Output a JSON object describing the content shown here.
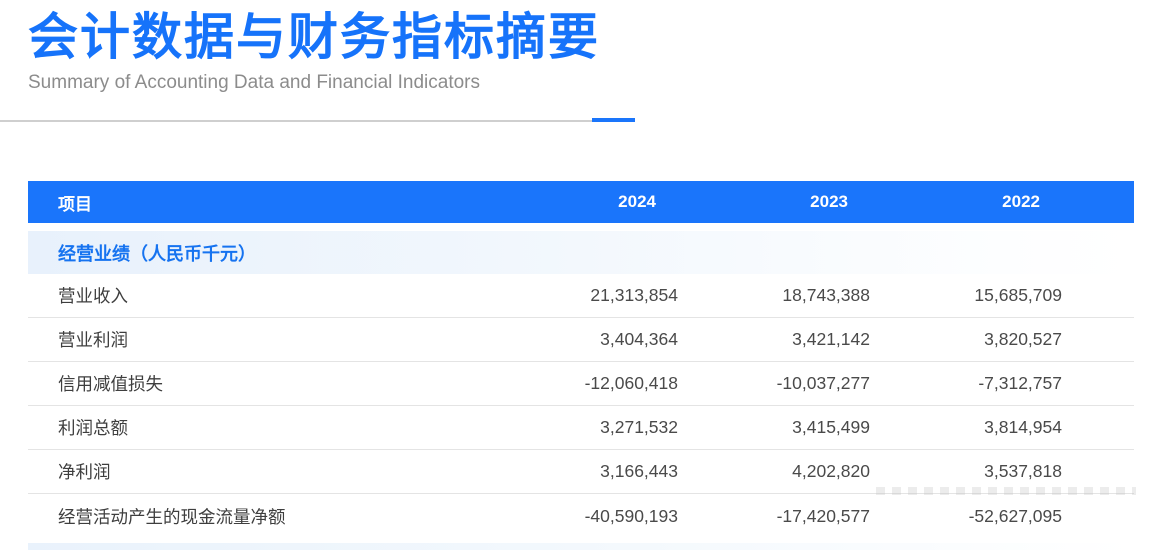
{
  "header": {
    "title": "会计数据与财务指标摘要",
    "subtitle": "Summary of Accounting Data and Financial Indicators"
  },
  "table": {
    "item_column_header": "项目",
    "year_headers": [
      "2024",
      "2023",
      "2022"
    ],
    "section_title": "经营业绩（人民币千元）",
    "rows": [
      {
        "label": "营业收入",
        "values": [
          "21,313,854",
          "18,743,388",
          "15,685,709"
        ]
      },
      {
        "label": "营业利润",
        "values": [
          "3,404,364",
          "3,421,142",
          "3,820,527"
        ]
      },
      {
        "label": "信用减值损失",
        "values": [
          "-12,060,418",
          "-10,037,277",
          "-7,312,757"
        ]
      },
      {
        "label": "利润总额",
        "values": [
          "3,271,532",
          "3,415,499",
          "3,814,954"
        ]
      },
      {
        "label": "净利润",
        "values": [
          "3,166,443",
          "4,202,820",
          "3,537,818"
        ]
      },
      {
        "label": "经营活动产生的现金流量净额",
        "values": [
          "-40,590,193",
          "-17,420,577",
          "-52,627,095"
        ]
      }
    ]
  },
  "colors": {
    "accent_blue": "#1a75fb",
    "title_blue": "#1673fa",
    "section_text_blue": "#1673f0",
    "section_bg_start": "#e8f1fc",
    "header_text": "#ffffff",
    "row_text": "#3e3e3e",
    "number_text": "#4a4a4a",
    "row_divider": "#e4e4e4",
    "subtitle_gray": "#8c8c8c",
    "divider_gray": "#cfcfcf"
  }
}
